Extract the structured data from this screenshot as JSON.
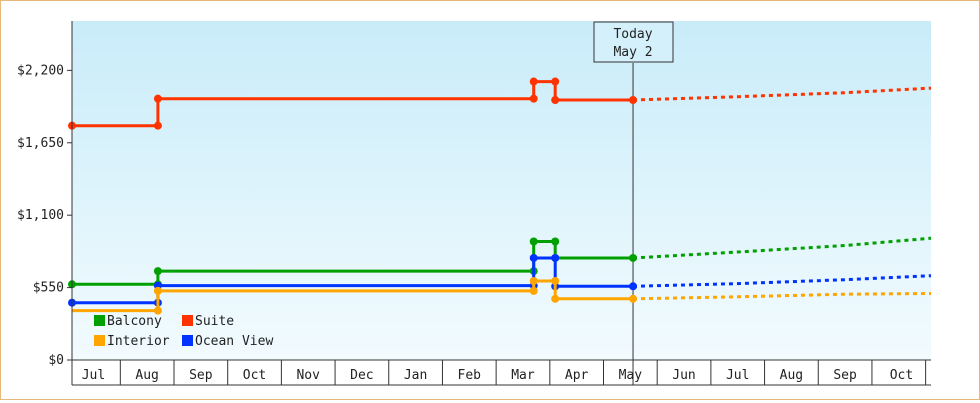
{
  "chart_data": {
    "type": "line",
    "title": "",
    "xlabel": "",
    "ylabel": "",
    "ylim": [
      0,
      2575
    ],
    "y_ticks": [
      {
        "value": 0,
        "label": "$0"
      },
      {
        "value": 550,
        "label": "$550"
      },
      {
        "value": 1100,
        "label": "$1,100"
      },
      {
        "value": 1650,
        "label": "$1,650"
      },
      {
        "value": 2200,
        "label": "$2,200"
      }
    ],
    "x_months": [
      "Jul",
      "Aug",
      "Sep",
      "Oct",
      "Nov",
      "Dec",
      "Jan",
      "Feb",
      "Mar",
      "Apr",
      "May",
      "Jun",
      "Jul",
      "Aug",
      "Sep",
      "Oct"
    ],
    "x_range": [
      -0.4,
      15.6
    ],
    "grid": false,
    "legend_position": "bottom-left",
    "today": {
      "x": 10.05,
      "line1": "Today",
      "line2": "May 2"
    },
    "series": [
      {
        "name": "Suite",
        "color": "#ff3300",
        "points": [
          [
            -0.4,
            1780
          ],
          [
            1.2,
            1780
          ],
          [
            1.2,
            1985
          ],
          [
            8.2,
            1985
          ],
          [
            8.2,
            2115
          ],
          [
            8.6,
            2115
          ],
          [
            8.6,
            1975
          ],
          [
            10.05,
            1975
          ]
        ],
        "markers": [
          [
            -0.4,
            1780
          ],
          [
            1.2,
            1780
          ],
          [
            1.2,
            1985
          ],
          [
            8.2,
            1985
          ],
          [
            8.2,
            2115
          ],
          [
            8.6,
            2115
          ],
          [
            8.6,
            1975
          ],
          [
            10.05,
            1975
          ]
        ],
        "forecast": [
          [
            10.05,
            1975
          ],
          [
            12.0,
            2000
          ],
          [
            14.0,
            2030
          ],
          [
            15.6,
            2065
          ]
        ]
      },
      {
        "name": "Balcony",
        "color": "#00a000",
        "points": [
          [
            -0.4,
            575
          ],
          [
            1.2,
            575
          ],
          [
            1.2,
            675
          ],
          [
            8.2,
            675
          ],
          [
            8.2,
            900
          ],
          [
            8.6,
            900
          ],
          [
            8.6,
            775
          ],
          [
            10.05,
            775
          ]
        ],
        "markers": [
          [
            -0.4,
            575
          ],
          [
            1.2,
            575
          ],
          [
            1.2,
            675
          ],
          [
            8.2,
            675
          ],
          [
            8.2,
            900
          ],
          [
            8.6,
            900
          ],
          [
            8.6,
            775
          ],
          [
            10.05,
            775
          ]
        ],
        "forecast": [
          [
            10.05,
            775
          ],
          [
            12.0,
            820
          ],
          [
            14.0,
            870
          ],
          [
            15.6,
            925
          ]
        ]
      },
      {
        "name": "Ocean View",
        "color": "#0033ff",
        "points": [
          [
            -0.4,
            435
          ],
          [
            1.2,
            435
          ],
          [
            1.2,
            565
          ],
          [
            8.2,
            565
          ],
          [
            8.2,
            775
          ],
          [
            8.6,
            775
          ],
          [
            8.6,
            560
          ],
          [
            10.05,
            560
          ]
        ],
        "markers": [
          [
            -0.4,
            435
          ],
          [
            1.2,
            435
          ],
          [
            1.2,
            565
          ],
          [
            8.2,
            565
          ],
          [
            8.2,
            775
          ],
          [
            8.6,
            775
          ],
          [
            8.6,
            560
          ],
          [
            10.05,
            560
          ]
        ],
        "forecast": [
          [
            10.05,
            560
          ],
          [
            12.0,
            580
          ],
          [
            14.0,
            610
          ],
          [
            15.6,
            640
          ]
        ]
      },
      {
        "name": "Interior",
        "color": "#ffa500",
        "points": [
          [
            -0.4,
            375
          ],
          [
            1.2,
            375
          ],
          [
            1.2,
            525
          ],
          [
            8.2,
            525
          ],
          [
            8.2,
            600
          ],
          [
            8.6,
            600
          ],
          [
            8.6,
            465
          ],
          [
            10.05,
            465
          ]
        ],
        "markers": [
          [
            1.2,
            375
          ],
          [
            1.2,
            525
          ],
          [
            8.2,
            525
          ],
          [
            8.2,
            600
          ],
          [
            8.6,
            600
          ],
          [
            8.6,
            465
          ],
          [
            10.05,
            465
          ]
        ],
        "forecast": [
          [
            10.05,
            465
          ],
          [
            12.0,
            480
          ],
          [
            14.0,
            500
          ],
          [
            15.6,
            505
          ]
        ]
      }
    ],
    "legend": [
      {
        "name": "Balcony",
        "color": "#00a000"
      },
      {
        "name": "Suite",
        "color": "#ff3300"
      },
      {
        "name": "Interior",
        "color": "#ffa500"
      },
      {
        "name": "Ocean View",
        "color": "#0033ff"
      }
    ]
  }
}
